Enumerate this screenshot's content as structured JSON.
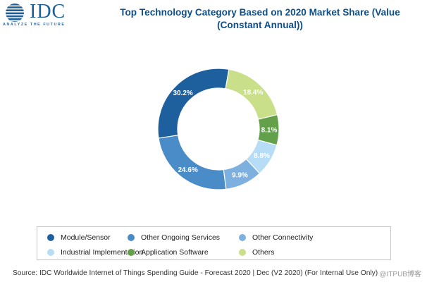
{
  "brand": {
    "name": "IDC",
    "tagline": "ANALYZE THE FUTURE"
  },
  "watermark": "@ITPUB博客",
  "chart_data": {
    "type": "pie",
    "variant": "donut",
    "title_lines": [
      "Top Technology Category Based on 2020 Market Share (Value",
      "(Constant Annual))"
    ],
    "title": "Top Technology Category Based on 2020 Market Share (Value (Constant Annual))",
    "unit": "%",
    "start_angle_deg": 80,
    "direction": "counterclockwise",
    "slices": [
      {
        "label": "Module/Sensor",
        "value": 30.2,
        "display": "30.2%",
        "color": "#1e5f9e"
      },
      {
        "label": "Other Ongoing Services",
        "value": 24.6,
        "display": "24.6%",
        "color": "#4a8cc7"
      },
      {
        "label": "Other Connectivity",
        "value": 9.9,
        "display": "9.9%",
        "color": "#7db0de"
      },
      {
        "label": "Industrial Implementation",
        "value": 8.8,
        "display": "8.8%",
        "color": "#b7dcf6"
      },
      {
        "label": "Application Software",
        "value": 8.1,
        "display": "8.1%",
        "color": "#62a14a"
      },
      {
        "label": "Others",
        "value": 18.4,
        "display": "18.4%",
        "color": "#c9df8a"
      }
    ],
    "legend_position": "bottom"
  },
  "source": "Source: IDC Worldwide Internet of Things Spending Guide - Forecast 2020 | Dec (V2 2020) (For Internal Use Only)"
}
